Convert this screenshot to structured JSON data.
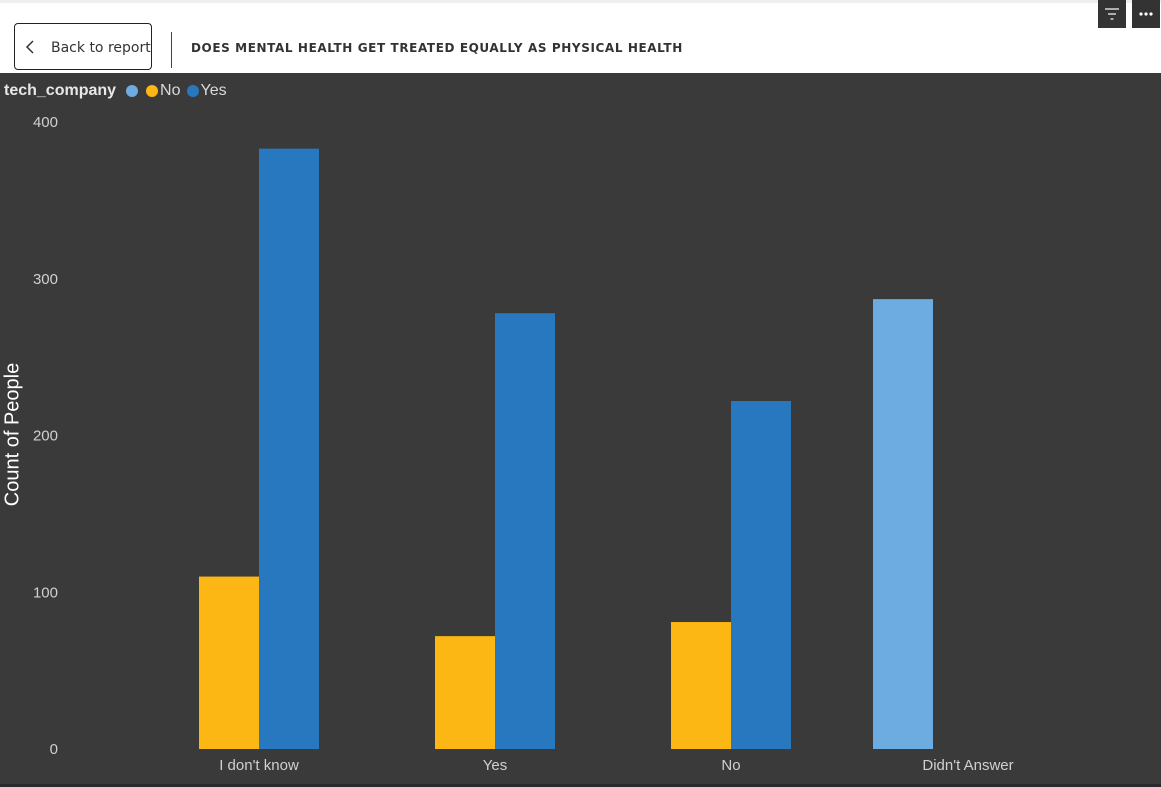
{
  "header": {
    "back_label": "Back to report",
    "title": "DOES MENTAL HEALTH GET TREATED EQUALLY AS PHYSICAL HEALTH"
  },
  "toolbar": {
    "filter_icon": "filter-icon",
    "more_icon": "more-options-icon"
  },
  "colors": {
    "background": "#3a3a3a",
    "blank": "#6cace0",
    "no": "#fdb714",
    "yes": "#2878c0"
  },
  "chart_data": {
    "type": "bar",
    "title": "DOES MENTAL HEALTH GET TREATED EQUALLY AS PHYSICAL HEALTH",
    "xlabel": "",
    "ylabel": "Count of People",
    "ylim": [
      0,
      400
    ],
    "yticks": [
      0,
      100,
      200,
      300,
      400
    ],
    "grid": false,
    "legend_title": "tech_company",
    "legend_position": "top-left",
    "categories": [
      "I don't know",
      "Yes",
      "No",
      "Didn't Answer"
    ],
    "series": [
      {
        "name": "",
        "color": "#6cace0",
        "values": [
          0,
          0,
          0,
          287
        ]
      },
      {
        "name": "No",
        "color": "#fdb714",
        "values": [
          110,
          72,
          81,
          0
        ]
      },
      {
        "name": "Yes",
        "color": "#2878c0",
        "values": [
          383,
          278,
          222,
          0
        ]
      }
    ]
  }
}
